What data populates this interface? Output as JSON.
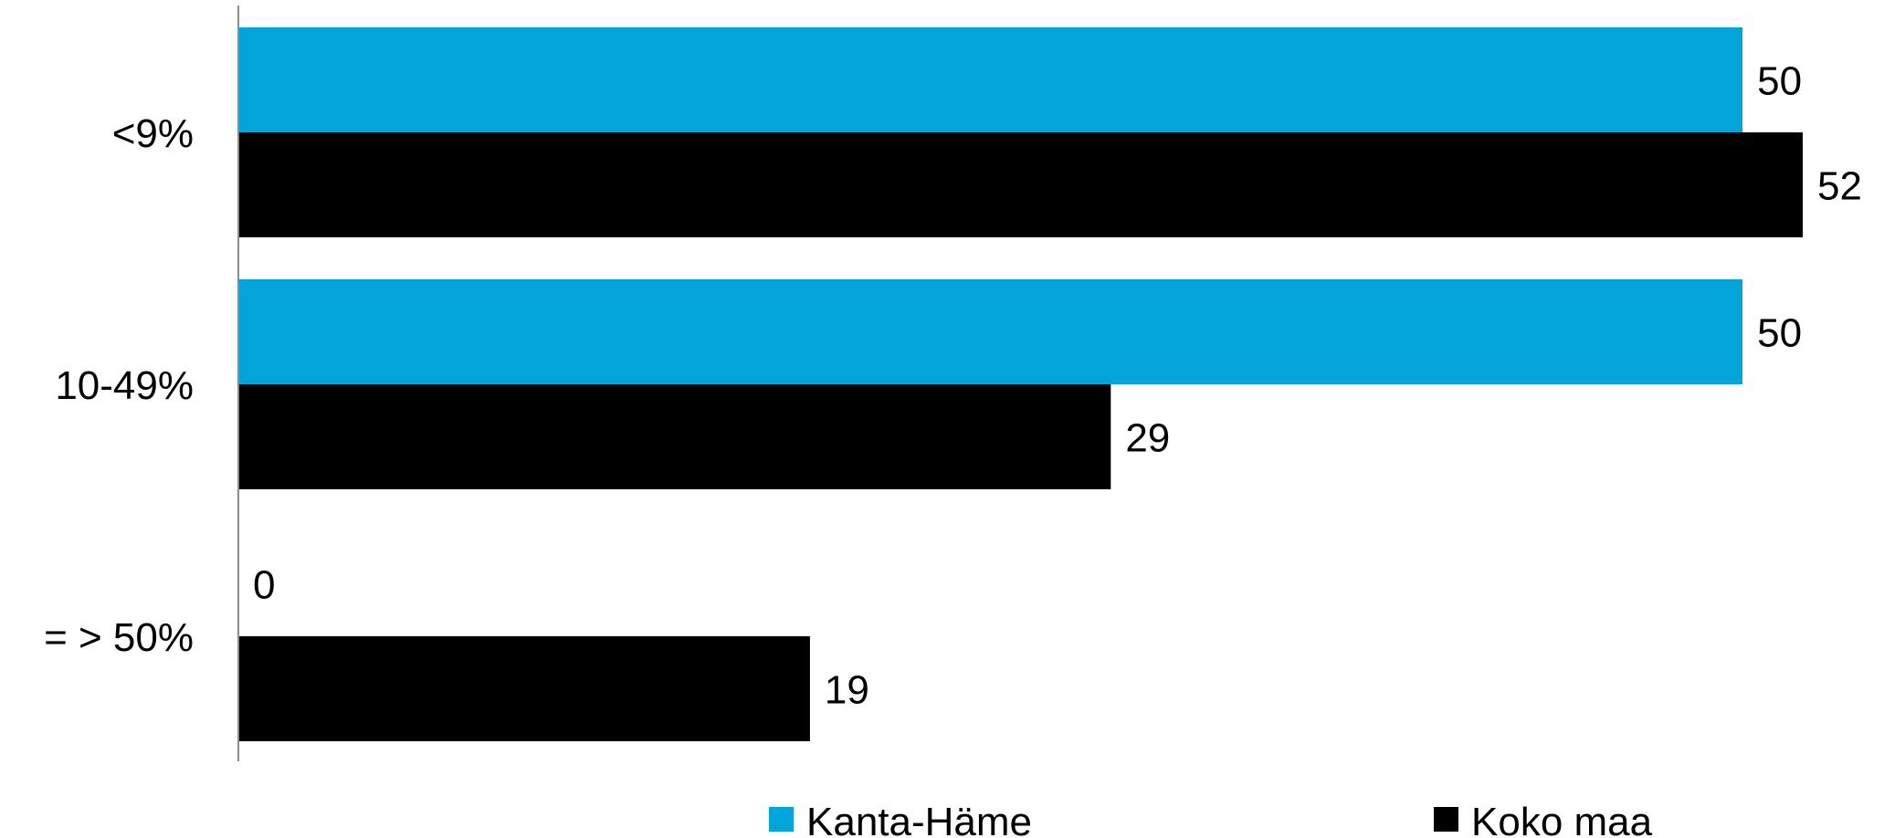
{
  "chart_data": {
    "type": "bar",
    "orientation": "horizontal",
    "categories": [
      "<9%",
      "10-49%",
      "= > 50%"
    ],
    "series": [
      {
        "name": "Kanta-Häme",
        "color": "#03a4da",
        "values": [
          50,
          50,
          0
        ],
        "labels": [
          "50",
          "50",
          "0"
        ]
      },
      {
        "name": "Koko maa",
        "color": "#000000",
        "values": [
          52,
          29,
          19
        ],
        "labels": [
          "52",
          "29",
          "19"
        ]
      }
    ],
    "xlim": [
      0,
      55
    ],
    "grid": false,
    "legend_position": "bottom",
    "title": "",
    "xlabel": "",
    "ylabel": ""
  }
}
